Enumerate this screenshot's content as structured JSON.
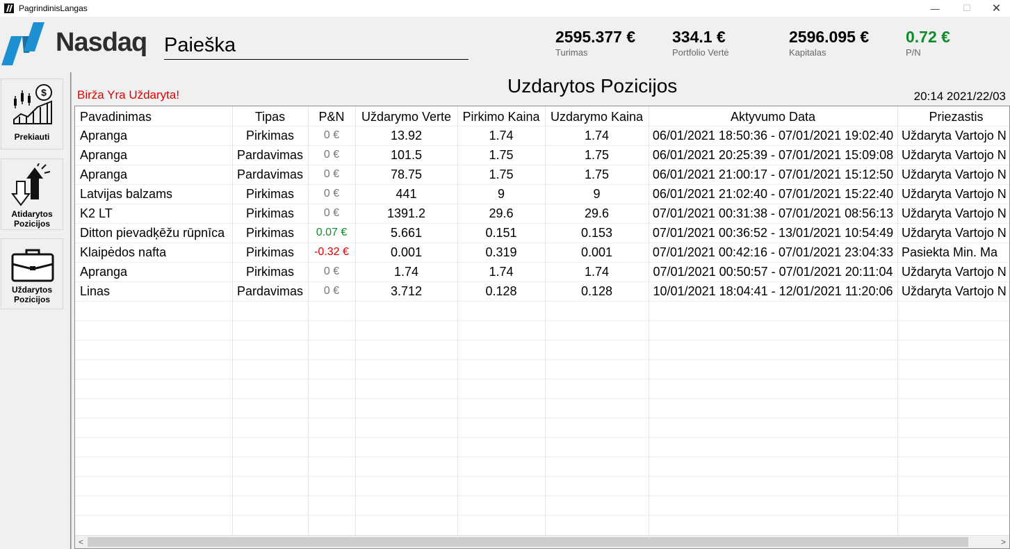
{
  "window": {
    "title": "PagrindinisLangas",
    "minimize": "—",
    "maximize": "☐",
    "close": "✕"
  },
  "header": {
    "logo_text": "Nasdaq",
    "search_value": "Paieška",
    "stats": [
      {
        "value": "2595.377 €",
        "label": "Turimas"
      },
      {
        "value": "334.1 €",
        "label": "Portfolio Vertė"
      },
      {
        "value": "2596.095 €",
        "label": "Kapitalas"
      },
      {
        "value": "0.72 €",
        "label": "P/N"
      }
    ],
    "pn_color": "#118a2c"
  },
  "sidebar": {
    "items": [
      {
        "label": "Prekiauti",
        "icon": "trading-chart-icon"
      },
      {
        "label": "Atidarytos Pozicijos",
        "icon": "buy-sell-arrows-icon"
      },
      {
        "label": "Uždarytos Pozicijos",
        "icon": "briefcase-icon"
      }
    ]
  },
  "content": {
    "market_status": "Birža Yra Uždaryta!",
    "title": "Uzdarytos Pozicijos",
    "clock": "20:14 2021/22/03"
  },
  "table": {
    "columns": [
      "Pavadinimas",
      "Tipas",
      "P&N",
      "Uždarymo Verte",
      "Pirkimo Kaina",
      "Uzdarymo Kaina",
      "Aktyvumo Data",
      "Priezastis"
    ],
    "rows": [
      [
        "Apranga",
        "Pirkimas",
        "0 €",
        "13.92",
        "1.74",
        "1.74",
        "06/01/2021 18:50:36 - 07/01/2021 19:02:40",
        "Uždaryta Vartojo N"
      ],
      [
        "Apranga",
        "Pardavimas",
        "0 €",
        "101.5",
        "1.75",
        "1.75",
        "06/01/2021 20:25:39 - 07/01/2021 15:09:08",
        "Uždaryta Vartojo N"
      ],
      [
        "Apranga",
        "Pardavimas",
        "0 €",
        "78.75",
        "1.75",
        "1.75",
        "06/01/2021 21:00:17 - 07/01/2021 15:12:50",
        "Uždaryta Vartojo N"
      ],
      [
        "Latvijas balzams",
        "Pirkimas",
        "0 €",
        "441",
        "9",
        "9",
        "06/01/2021 21:02:40 - 07/01/2021 15:22:40",
        "Uždaryta Vartojo N"
      ],
      [
        "K2 LT",
        "Pirkimas",
        "0 €",
        "1391.2",
        "29.6",
        "29.6",
        "07/01/2021 00:31:38 - 07/01/2021 08:56:13",
        "Uždaryta Vartojo N"
      ],
      [
        "Ditton pievadķēžu rūpnīca",
        "Pirkimas",
        "0.07 €",
        "5.661",
        "0.151",
        "0.153",
        "07/01/2021 00:36:52 - 13/01/2021 10:54:49",
        "Uždaryta Vartojo N"
      ],
      [
        "Klaipėdos nafta",
        "Pirkimas",
        "-0.32 €",
        "0.001",
        "0.319",
        "0.001",
        "07/01/2021 00:42:16 - 07/01/2021 23:04:33",
        "Pasiekta Min. Ma"
      ],
      [
        "Apranga",
        "Pirkimas",
        "0 €",
        "1.74",
        "1.74",
        "1.74",
        "07/01/2021 00:50:57 - 07/01/2021 20:11:04",
        "Uždaryta Vartojo N"
      ],
      [
        "Linas",
        "Pardavimas",
        "0 €",
        "3.712",
        "0.128",
        "0.128",
        "10/01/2021 18:04:41 - 12/01/2021 11:20:06",
        "Uždaryta Vartojo N"
      ]
    ],
    "pn_colors": {
      "zero": "#777777",
      "positive": "#118a2c",
      "negative": "#e00000"
    },
    "scroll_left": "<",
    "scroll_right": ">"
  },
  "colors": {
    "accent": "#1e8fd0",
    "status_closed": "#e00000"
  }
}
